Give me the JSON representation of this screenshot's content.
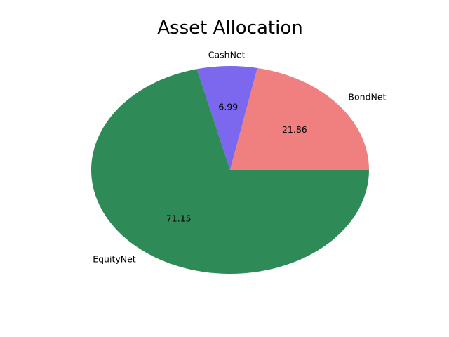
{
  "chart_data": {
    "type": "pie",
    "title": "Asset Allocation",
    "labels": [
      "BondNet",
      "CashNet",
      "EquityNet"
    ],
    "values": [
      21.86,
      6.99,
      71.15
    ],
    "value_labels": [
      "21.86",
      "6.99",
      "71.15"
    ],
    "colors": [
      "#f08080",
      "#7b68ee",
      "#2e8b57"
    ],
    "start_angle": 0,
    "direction": "counterclockwise",
    "legend": "none"
  }
}
